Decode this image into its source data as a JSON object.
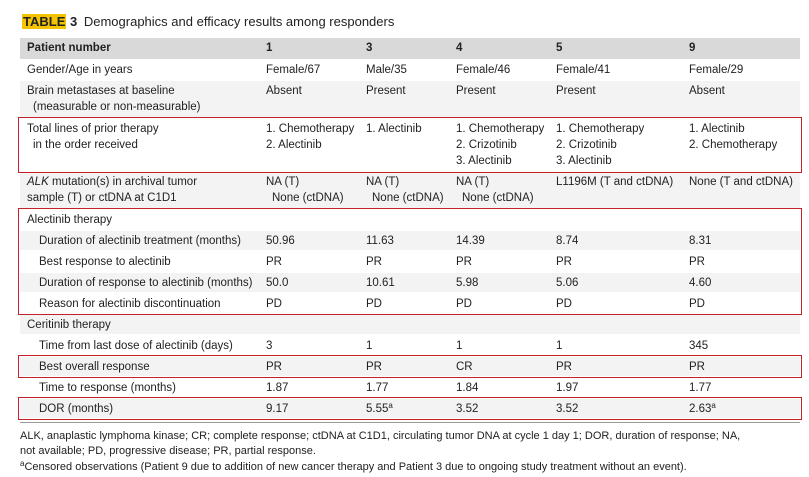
{
  "header": {
    "label": "TABLE",
    "number": "3",
    "title": "Demographics and efficacy results among responders"
  },
  "table": {
    "columns": [
      "Patient number",
      "1",
      "3",
      "4",
      "5",
      "9"
    ],
    "rows": [
      {
        "label": [
          "Gender/Age in years"
        ],
        "cells": [
          [
            "Female/67"
          ],
          [
            "Male/35"
          ],
          [
            "Female/46"
          ],
          [
            "Female/41"
          ],
          [
            "Female/29"
          ]
        ]
      },
      {
        "label": [
          "Brain metastases at baseline",
          "(measurable or non-measurable)"
        ],
        "cells": [
          [
            "Absent"
          ],
          [
            "Present"
          ],
          [
            "Present"
          ],
          [
            "Present"
          ],
          [
            "Absent"
          ]
        ]
      },
      {
        "label": [
          "Total lines of prior therapy",
          "in the order received"
        ],
        "cells": [
          [
            "1. Chemotherapy",
            "2. Alectinib"
          ],
          [
            "1. Alectinib"
          ],
          [
            "1. Chemotherapy",
            "2. Crizotinib",
            "3. Alectinib"
          ],
          [
            "1. Chemotherapy",
            "2. Crizotinib",
            "3. Alectinib"
          ],
          [
            "1. Alectinib",
            "2. Chemotherapy"
          ]
        ]
      },
      {
        "label_italic": "ALK",
        "label": [
          " mutation(s) in archival tumor",
          "sample (T) or ctDNA at C1D1"
        ],
        "cells": [
          [
            "NA (T)",
            "None (ctDNA)"
          ],
          [
            "NA (T)",
            "None (ctDNA)"
          ],
          [
            "NA (T)",
            "None (ctDNA)"
          ],
          [
            "L1196M (T and ctDNA)"
          ],
          [
            "None (T and ctDNA)"
          ]
        ]
      },
      {
        "section": "Alectinib therapy"
      },
      {
        "indent": true,
        "label": [
          "Duration of alectinib treatment (months)"
        ],
        "cells": [
          [
            "50.96"
          ],
          [
            "11.63"
          ],
          [
            "14.39"
          ],
          [
            "8.74"
          ],
          [
            "8.31"
          ]
        ]
      },
      {
        "indent": true,
        "label": [
          "Best response to alectinib"
        ],
        "cells": [
          [
            "PR"
          ],
          [
            "PR"
          ],
          [
            "PR"
          ],
          [
            "PR"
          ],
          [
            "PR"
          ]
        ]
      },
      {
        "indent": true,
        "label": [
          "Duration of response to alectinib (months)"
        ],
        "cells": [
          [
            "50.0"
          ],
          [
            "10.61"
          ],
          [
            "5.98"
          ],
          [
            "5.06"
          ],
          [
            "4.60"
          ]
        ]
      },
      {
        "indent": true,
        "label": [
          "Reason for alectinib discontinuation"
        ],
        "cells": [
          [
            "PD"
          ],
          [
            "PD"
          ],
          [
            "PD"
          ],
          [
            "PD"
          ],
          [
            "PD"
          ]
        ]
      },
      {
        "section": "Ceritinib therapy"
      },
      {
        "indent": true,
        "label": [
          "Time from last dose of alectinib (days)"
        ],
        "cells": [
          [
            "3"
          ],
          [
            "1"
          ],
          [
            "1"
          ],
          [
            "1"
          ],
          [
            "345"
          ]
        ]
      },
      {
        "indent": true,
        "label": [
          "Best overall response"
        ],
        "cells": [
          [
            "PR"
          ],
          [
            "PR"
          ],
          [
            "CR"
          ],
          [
            "PR"
          ],
          [
            "PR"
          ]
        ]
      },
      {
        "indent": true,
        "label": [
          "Time to response (months)"
        ],
        "cells": [
          [
            "1.87"
          ],
          [
            "1.77"
          ],
          [
            "1.84"
          ],
          [
            "1.97"
          ],
          [
            "1.77"
          ]
        ]
      },
      {
        "indent": true,
        "label": [
          "DOR (months)"
        ],
        "cells": [
          [
            "9.17"
          ],
          [
            {
              "text": "5.55",
              "sup": "a"
            }
          ],
          [
            "3.52"
          ],
          [
            "3.52"
          ],
          [
            {
              "text": "2.63",
              "sup": "a"
            }
          ]
        ]
      }
    ]
  },
  "footnotes": [
    {
      "lines": [
        "ALK, anaplastic lymphoma kinase; CR; complete response; ctDNA at C1D1, circulating tumor DNA at cycle 1 day 1; DOR, duration of response; NA,",
        "not available; PD, progressive disease; PR, partial response."
      ]
    },
    {
      "sup": "a",
      "lines": [
        "Censored observations (Patient 9 due to addition of new cancer therapy and Patient 3 due to ongoing study treatment without an event)."
      ]
    }
  ]
}
